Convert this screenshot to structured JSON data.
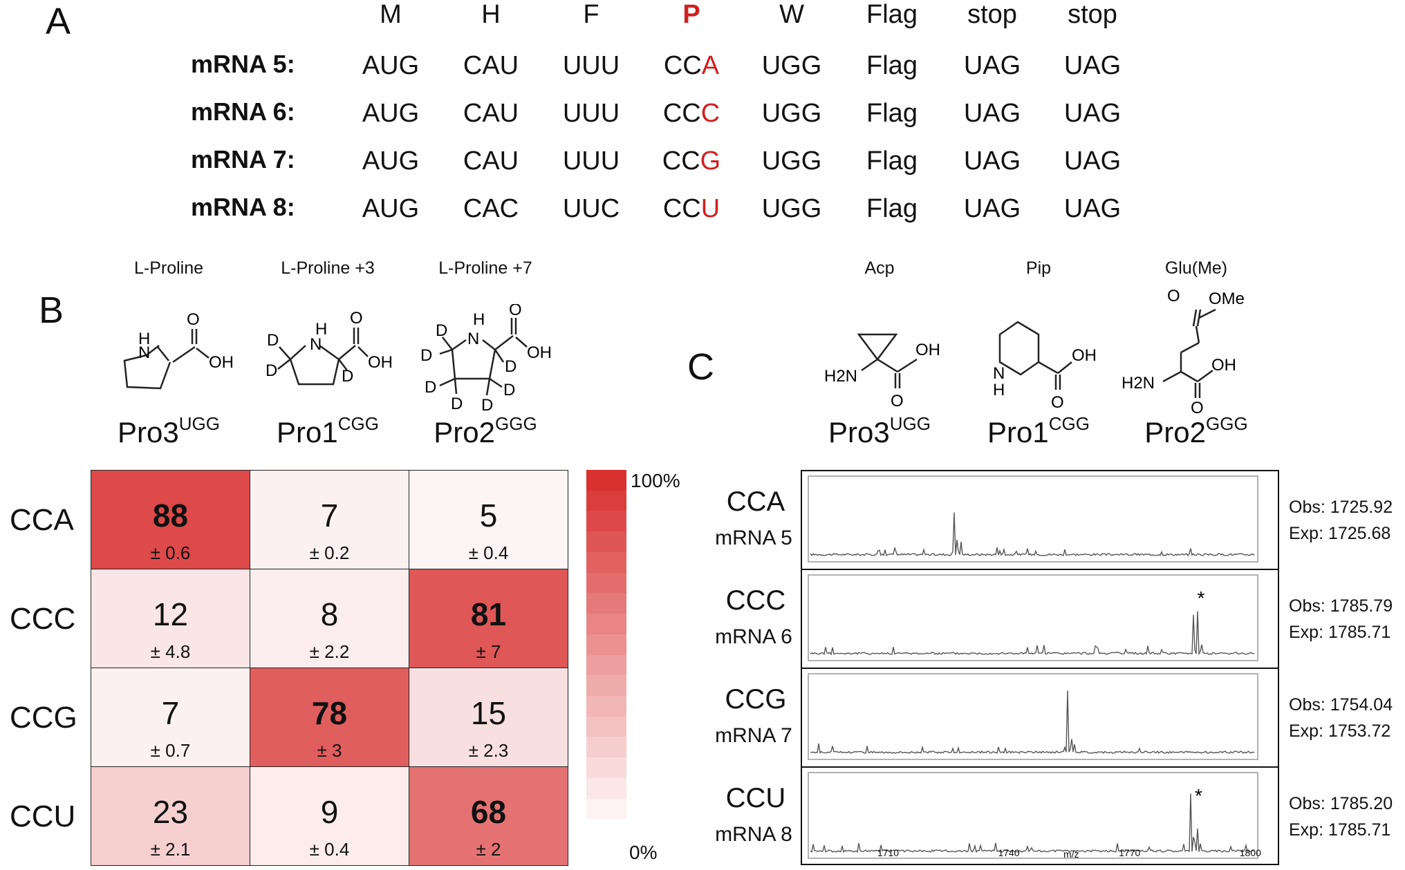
{
  "panelA": {
    "letter": "A",
    "headers": [
      "M",
      "H",
      "F",
      "P",
      "W",
      "Flag",
      "stop",
      "stop"
    ],
    "highlight_header_index": 3,
    "rows": [
      {
        "label": "mRNA 5:",
        "codons": [
          "AUG",
          "CAU",
          "UUU",
          "CC",
          "UGG",
          "Flag",
          "UAG",
          "UAG"
        ],
        "p_last": "A"
      },
      {
        "label": "mRNA 6:",
        "codons": [
          "AUG",
          "CAU",
          "UUU",
          "CC",
          "UGG",
          "Flag",
          "UAG",
          "UAG"
        ],
        "p_last": "C"
      },
      {
        "label": "mRNA 7:",
        "codons": [
          "AUG",
          "CAU",
          "UUU",
          "CC",
          "UGG",
          "Flag",
          "UAG",
          "UAG"
        ],
        "p_last": "G"
      },
      {
        "label": "mRNA 8:",
        "codons": [
          "AUG",
          "CAC",
          "UUC",
          "CC",
          "UGG",
          "Flag",
          "UAG",
          "UAG"
        ],
        "p_last": "U"
      }
    ]
  },
  "panelB": {
    "letter": "B",
    "molecules": [
      {
        "name": "L-Proline",
        "trna": "Pro3",
        "anticodon": "UGG"
      },
      {
        "name": "L-Proline +3",
        "trna": "Pro1",
        "anticodon": "CGG"
      },
      {
        "name": "L-Proline +7",
        "trna": "Pro2",
        "anticodon": "GGG"
      }
    ],
    "atoms": {
      "N": "N",
      "H": "H",
      "O": "O",
      "OH": "OH",
      "D": "D"
    },
    "scale": {
      "max_label": "100%",
      "min_label": "0%"
    }
  },
  "panelC": {
    "letter": "C",
    "molecules": [
      {
        "name": "Acp",
        "trna": "Pro3",
        "anticodon": "UGG"
      },
      {
        "name": "Pip",
        "trna": "Pro1",
        "anticodon": "CGG"
      },
      {
        "name": "Glu(Me)",
        "trna": "Pro2",
        "anticodon": "GGG"
      }
    ],
    "atoms": {
      "H2N": "H2N",
      "OMe": "OMe",
      "N": "N",
      "H": "H",
      "O": "O",
      "OH": "OH"
    },
    "ms_axis": {
      "ticks": [
        "1710",
        "1740",
        "1770",
        "1800"
      ],
      "xlabel": "m/z"
    },
    "spectra": [
      {
        "codon": "CCA",
        "mrna": "mRNA 5",
        "obs": "Obs: 1725.92",
        "exp": "Exp: 1725.68",
        "star": ""
      },
      {
        "codon": "CCC",
        "mrna": "mRNA 6",
        "obs": "Obs: 1785.79",
        "exp": "Exp: 1785.71",
        "star": "*"
      },
      {
        "codon": "CCG",
        "mrna": "mRNA 7",
        "obs": "Obs: 1754.04",
        "exp": "Exp: 1753.72",
        "star": ""
      },
      {
        "codon": "CCU",
        "mrna": "mRNA 8",
        "obs": "Obs: 1785.20",
        "exp": "Exp: 1785.71",
        "star": "*"
      }
    ]
  },
  "chart_data": [
    {
      "type": "heatmap",
      "row_labels": [
        "CCA",
        "CCC",
        "CCG",
        "CCU"
      ],
      "col_labels": [
        "Pro3UGG",
        "Pro1CGG",
        "Pro2GGG"
      ],
      "values": [
        [
          88,
          7,
          5
        ],
        [
          12,
          8,
          81
        ],
        [
          7,
          78,
          15
        ],
        [
          23,
          9,
          68
        ]
      ],
      "errors": [
        [
          "± 0.6",
          "± 0.2",
          "± 0.4"
        ],
        [
          "± 4.8",
          "± 2.2",
          "± 7"
        ],
        [
          "± 0.7",
          "± 3",
          "± 2.3"
        ],
        [
          "± 2.1",
          "± 0.4",
          "± 2"
        ]
      ],
      "bold_threshold": 50,
      "color_max": "#d93030",
      "color_min": "#ffffff",
      "scale_range": [
        0,
        100
      ]
    },
    {
      "type": "line",
      "xlabel": "m/z",
      "xlim": [
        1690,
        1802
      ],
      "series": [
        {
          "peak_x": 1725.92
        },
        {
          "peak_x": 1785.79
        },
        {
          "peak_x": 1754.04
        },
        {
          "peak_x": 1785.2
        }
      ]
    }
  ]
}
